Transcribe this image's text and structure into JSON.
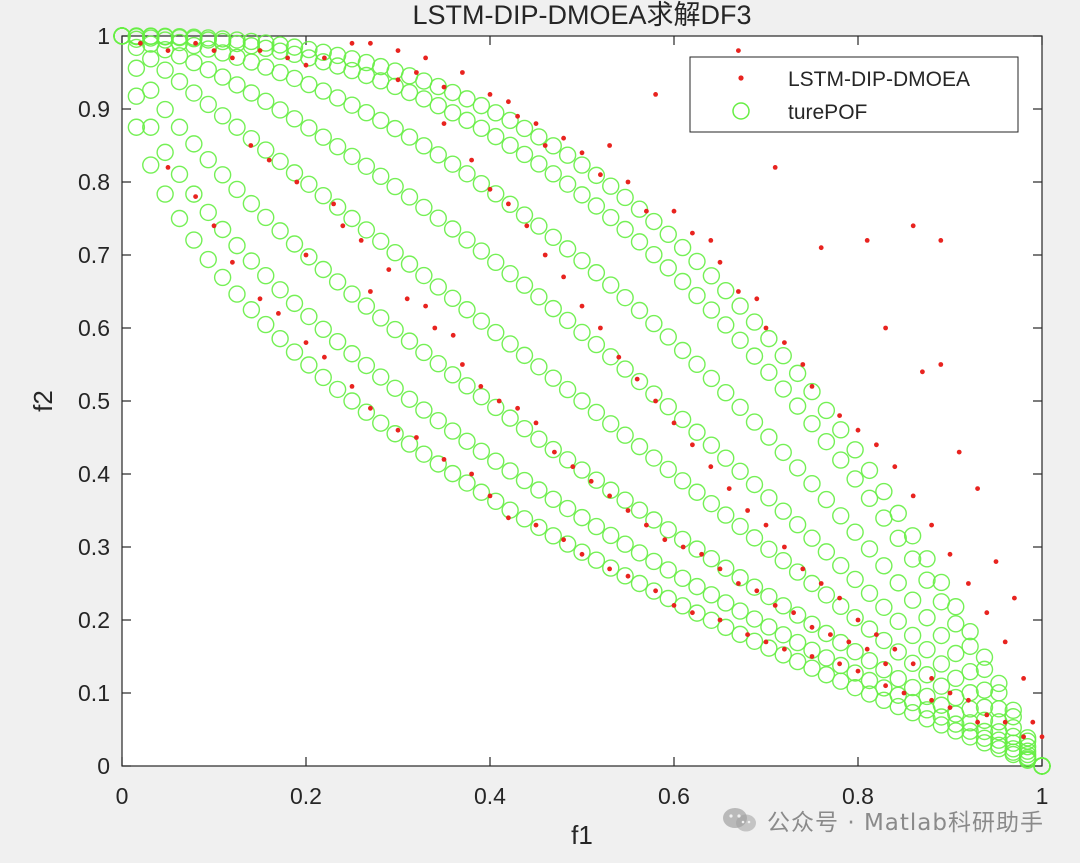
{
  "chart_data": {
    "type": "scatter",
    "title": "LSTM-DIP-DMOEA求解DF3",
    "xlabel": "f1",
    "ylabel": "f2",
    "xlim": [
      0,
      1
    ],
    "ylim": [
      0,
      1
    ],
    "xticks": [
      "0",
      "0.2",
      "0.4",
      "0.6",
      "0.8",
      "1"
    ],
    "yticks": [
      "0",
      "0.1",
      "0.2",
      "0.3",
      "0.4",
      "0.5",
      "0.6",
      "0.7",
      "0.8",
      "0.9",
      "1"
    ],
    "legend": {
      "position": "top-right",
      "entries": [
        "LSTM-DIP-DMOEA",
        "turePOF"
      ]
    },
    "series": [
      {
        "name": "LSTM-DIP-DMOEA",
        "marker": "dot",
        "color": "#e8231f",
        "description_points": [
          [
            0.02,
            0.99
          ],
          [
            0.05,
            0.98
          ],
          [
            0.08,
            0.99
          ],
          [
            0.1,
            0.98
          ],
          [
            0.12,
            0.97
          ],
          [
            0.15,
            0.98
          ],
          [
            0.18,
            0.97
          ],
          [
            0.2,
            0.96
          ],
          [
            0.22,
            0.97
          ],
          [
            0.25,
            0.99
          ],
          [
            0.27,
            0.99
          ],
          [
            0.3,
            0.98
          ],
          [
            0.3,
            0.94
          ],
          [
            0.32,
            0.95
          ],
          [
            0.33,
            0.97
          ],
          [
            0.35,
            0.93
          ],
          [
            0.37,
            0.95
          ],
          [
            0.4,
            0.92
          ],
          [
            0.42,
            0.91
          ],
          [
            0.43,
            0.89
          ],
          [
            0.45,
            0.88
          ],
          [
            0.46,
            0.85
          ],
          [
            0.48,
            0.86
          ],
          [
            0.5,
            0.84
          ],
          [
            0.52,
            0.81
          ],
          [
            0.53,
            0.85
          ],
          [
            0.55,
            0.8
          ],
          [
            0.57,
            0.76
          ],
          [
            0.58,
            0.92
          ],
          [
            0.6,
            0.76
          ],
          [
            0.62,
            0.73
          ],
          [
            0.64,
            0.72
          ],
          [
            0.65,
            0.69
          ],
          [
            0.67,
            0.98
          ],
          [
            0.67,
            0.65
          ],
          [
            0.69,
            0.64
          ],
          [
            0.7,
            0.6
          ],
          [
            0.71,
            0.82
          ],
          [
            0.72,
            0.58
          ],
          [
            0.74,
            0.55
          ],
          [
            0.75,
            0.52
          ],
          [
            0.76,
            0.71
          ],
          [
            0.78,
            0.48
          ],
          [
            0.8,
            0.46
          ],
          [
            0.81,
            0.72
          ],
          [
            0.82,
            0.44
          ],
          [
            0.83,
            0.6
          ],
          [
            0.84,
            0.41
          ],
          [
            0.86,
            0.74
          ],
          [
            0.86,
            0.37
          ],
          [
            0.87,
            0.54
          ],
          [
            0.88,
            0.33
          ],
          [
            0.89,
            0.72
          ],
          [
            0.89,
            0.55
          ],
          [
            0.9,
            0.29
          ],
          [
            0.91,
            0.43
          ],
          [
            0.92,
            0.25
          ],
          [
            0.93,
            0.38
          ],
          [
            0.94,
            0.21
          ],
          [
            0.95,
            0.28
          ],
          [
            0.96,
            0.17
          ],
          [
            0.97,
            0.23
          ],
          [
            0.98,
            0.12
          ],
          [
            0.99,
            0.06
          ],
          [
            1.0,
            0.04
          ],
          [
            0.05,
            0.82
          ],
          [
            0.08,
            0.78
          ],
          [
            0.1,
            0.74
          ],
          [
            0.12,
            0.69
          ],
          [
            0.15,
            0.64
          ],
          [
            0.17,
            0.62
          ],
          [
            0.2,
            0.58
          ],
          [
            0.22,
            0.56
          ],
          [
            0.25,
            0.52
          ],
          [
            0.27,
            0.49
          ],
          [
            0.3,
            0.46
          ],
          [
            0.32,
            0.45
          ],
          [
            0.35,
            0.42
          ],
          [
            0.38,
            0.4
          ],
          [
            0.4,
            0.37
          ],
          [
            0.42,
            0.34
          ],
          [
            0.45,
            0.33
          ],
          [
            0.48,
            0.31
          ],
          [
            0.5,
            0.29
          ],
          [
            0.53,
            0.27
          ],
          [
            0.55,
            0.26
          ],
          [
            0.58,
            0.24
          ],
          [
            0.6,
            0.22
          ],
          [
            0.62,
            0.21
          ],
          [
            0.65,
            0.2
          ],
          [
            0.68,
            0.18
          ],
          [
            0.7,
            0.17
          ],
          [
            0.72,
            0.16
          ],
          [
            0.75,
            0.15
          ],
          [
            0.78,
            0.14
          ],
          [
            0.8,
            0.13
          ],
          [
            0.83,
            0.11
          ],
          [
            0.85,
            0.1
          ],
          [
            0.88,
            0.09
          ],
          [
            0.9,
            0.08
          ],
          [
            0.93,
            0.06
          ],
          [
            0.14,
            0.85
          ],
          [
            0.16,
            0.83
          ],
          [
            0.19,
            0.8
          ],
          [
            0.2,
            0.7
          ],
          [
            0.23,
            0.77
          ],
          [
            0.24,
            0.74
          ],
          [
            0.26,
            0.72
          ],
          [
            0.27,
            0.65
          ],
          [
            0.29,
            0.68
          ],
          [
            0.31,
            0.64
          ],
          [
            0.33,
            0.63
          ],
          [
            0.34,
            0.6
          ],
          [
            0.36,
            0.59
          ],
          [
            0.37,
            0.55
          ],
          [
            0.39,
            0.52
          ],
          [
            0.41,
            0.5
          ],
          [
            0.43,
            0.49
          ],
          [
            0.45,
            0.47
          ],
          [
            0.47,
            0.43
          ],
          [
            0.49,
            0.41
          ],
          [
            0.51,
            0.39
          ],
          [
            0.53,
            0.37
          ],
          [
            0.55,
            0.35
          ],
          [
            0.57,
            0.33
          ],
          [
            0.59,
            0.31
          ],
          [
            0.61,
            0.3
          ],
          [
            0.63,
            0.29
          ],
          [
            0.65,
            0.27
          ],
          [
            0.67,
            0.25
          ],
          [
            0.69,
            0.24
          ],
          [
            0.71,
            0.22
          ],
          [
            0.73,
            0.21
          ],
          [
            0.75,
            0.19
          ],
          [
            0.77,
            0.18
          ],
          [
            0.79,
            0.17
          ],
          [
            0.81,
            0.16
          ],
          [
            0.83,
            0.14
          ],
          [
            0.35,
            0.88
          ],
          [
            0.38,
            0.83
          ],
          [
            0.4,
            0.79
          ],
          [
            0.42,
            0.77
          ],
          [
            0.44,
            0.74
          ],
          [
            0.46,
            0.7
          ],
          [
            0.48,
            0.67
          ],
          [
            0.5,
            0.63
          ],
          [
            0.52,
            0.6
          ],
          [
            0.54,
            0.56
          ],
          [
            0.56,
            0.53
          ],
          [
            0.58,
            0.5
          ],
          [
            0.6,
            0.47
          ],
          [
            0.62,
            0.44
          ],
          [
            0.64,
            0.41
          ],
          [
            0.66,
            0.38
          ],
          [
            0.68,
            0.35
          ],
          [
            0.7,
            0.33
          ],
          [
            0.72,
            0.3
          ],
          [
            0.74,
            0.27
          ],
          [
            0.76,
            0.25
          ],
          [
            0.78,
            0.23
          ],
          [
            0.8,
            0.2
          ],
          [
            0.82,
            0.18
          ],
          [
            0.84,
            0.16
          ],
          [
            0.86,
            0.14
          ],
          [
            0.88,
            0.12
          ],
          [
            0.9,
            0.1
          ],
          [
            0.92,
            0.09
          ],
          [
            0.94,
            0.07
          ],
          [
            0.96,
            0.06
          ],
          [
            0.98,
            0.04
          ]
        ]
      },
      {
        "name": "turePOF",
        "marker": "open-circle",
        "color": "#66ee44",
        "family": "DF3 true Pareto front curves f2 = 1 - f1^H, H in [0.5, 2.5]",
        "curve_exponents": [
          0.5,
          0.6,
          0.75,
          1.0,
          1.3,
          1.7,
          2.2,
          2.5
        ]
      }
    ]
  },
  "watermark": {
    "text": "公众号 · Matlab科研助手"
  }
}
